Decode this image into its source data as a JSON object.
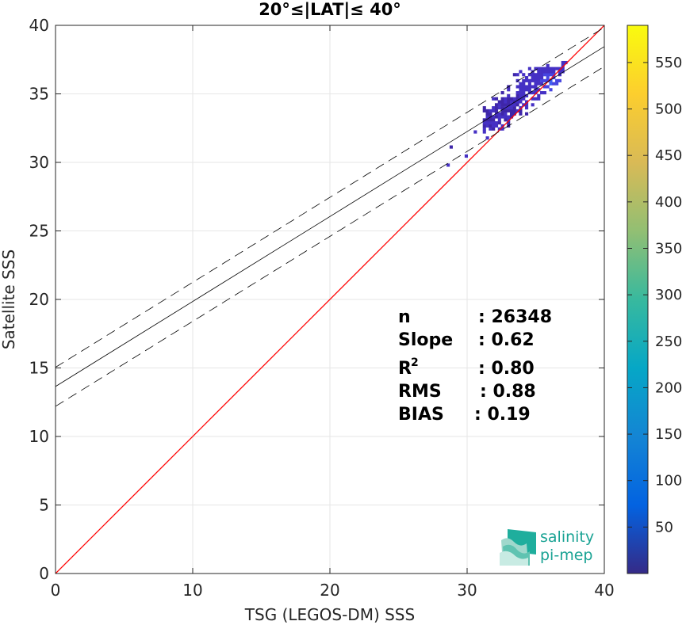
{
  "chart_data": {
    "type": "heatmap",
    "title": "20°≤|LAT|≤ 40°",
    "xlabel": "TSG (LEGOS-DM) SSS",
    "ylabel": "Satellite SSS",
    "xlim": [
      0,
      40
    ],
    "ylim": [
      0,
      40
    ],
    "x_ticks": [
      "0",
      "10",
      "20",
      "30",
      "40"
    ],
    "y_ticks": [
      "0",
      "5",
      "10",
      "15",
      "20",
      "25",
      "30",
      "35",
      "40"
    ],
    "grid": true,
    "colorbar": {
      "range": [
        0,
        590
      ],
      "ticks": [
        "50",
        "100",
        "150",
        "200",
        "250",
        "300",
        "350",
        "400",
        "450",
        "500",
        "550"
      ],
      "colormap": "parula"
    },
    "reference_line": {
      "x": [
        0,
        40
      ],
      "y": [
        0,
        40
      ],
      "color": "#ff0000"
    },
    "fit_line": {
      "x": [
        0,
        40
      ],
      "y": [
        13.65,
        38.45
      ],
      "color": "#000000"
    },
    "fit_bounds": [
      {
        "x": [
          0,
          40
        ],
        "y": [
          15.05,
          39.85
        ]
      },
      {
        "x": [
          0,
          40
        ],
        "y": [
          12.2,
          37.0
        ]
      }
    ],
    "density_region": {
      "x_range": [
        28.5,
        37.5
      ],
      "y_range": [
        29.7,
        37.2
      ],
      "peak": [
        36.0,
        35.8
      ]
    },
    "stats": [
      {
        "label": "n",
        "sep": ":",
        "value": "26348"
      },
      {
        "label": "Slope",
        "sep": ":",
        "value": "0.62"
      },
      {
        "label": "R",
        "sup": "2",
        "sep": ":",
        "value": "0.80"
      },
      {
        "label": "RMS",
        "sep": ":",
        "value": "0.88"
      },
      {
        "label": "BIAS",
        "sep": ":",
        "value": "0.19"
      }
    ]
  },
  "logo": {
    "line1": "salinity",
    "line2": "pi-mep"
  }
}
